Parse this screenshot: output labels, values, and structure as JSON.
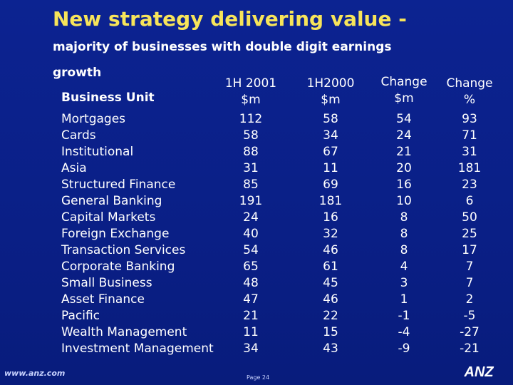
{
  "title": {
    "line1": "New strategy delivering value -",
    "line2": "majority of businesses with double digit earnings",
    "line3": "growth"
  },
  "table": {
    "headers": {
      "business_unit": "Business Unit",
      "h1_2001_a": "1H 2001",
      "h1_2001_b": "$m",
      "h1_2000_a": "1H2000",
      "h1_2000_b": "$m",
      "change_m_a": "Change",
      "change_m_b": "$m",
      "change_pct_a": "Change",
      "change_pct_b": "%"
    },
    "rows": [
      {
        "unit": "Mortgages",
        "h1_2001": "112",
        "h1_2000": "58",
        "change_m": "54",
        "change_pct": "93"
      },
      {
        "unit": "Cards",
        "h1_2001": "58",
        "h1_2000": "34",
        "change_m": "24",
        "change_pct": "71"
      },
      {
        "unit": "Institutional",
        "h1_2001": "88",
        "h1_2000": "67",
        "change_m": "21",
        "change_pct": "31"
      },
      {
        "unit": "Asia",
        "h1_2001": "31",
        "h1_2000": "11",
        "change_m": "20",
        "change_pct": "181"
      },
      {
        "unit": "Structured Finance",
        "h1_2001": "85",
        "h1_2000": "69",
        "change_m": "16",
        "change_pct": "23"
      },
      {
        "unit": "General Banking",
        "h1_2001": "191",
        "h1_2000": "181",
        "change_m": "10",
        "change_pct": "6"
      },
      {
        "unit": "Capital Markets",
        "h1_2001": "24",
        "h1_2000": "16",
        "change_m": "8",
        "change_pct": "50"
      },
      {
        "unit": "Foreign Exchange",
        "h1_2001": "40",
        "h1_2000": "32",
        "change_m": "8",
        "change_pct": "25"
      },
      {
        "unit": "Transaction Services",
        "h1_2001": "54",
        "h1_2000": "46",
        "change_m": "8",
        "change_pct": "17"
      },
      {
        "unit": "Corporate Banking",
        "h1_2001": "65",
        "h1_2000": "61",
        "change_m": "4",
        "change_pct": "7"
      },
      {
        "unit": "Small Business",
        "h1_2001": "48",
        "h1_2000": "45",
        "change_m": "3",
        "change_pct": "7"
      },
      {
        "unit": "Asset Finance",
        "h1_2001": "47",
        "h1_2000": "46",
        "change_m": "1",
        "change_pct": "2"
      },
      {
        "unit": "Pacific",
        "h1_2001": "21",
        "h1_2000": "22",
        "change_m": "-1",
        "change_pct": "-5"
      },
      {
        "unit": "Wealth Management",
        "h1_2001": "11",
        "h1_2000": "15",
        "change_m": "-4",
        "change_pct": "-27"
      },
      {
        "unit": "Investment Management",
        "h1_2001": "34",
        "h1_2000": "43",
        "change_m": "-9",
        "change_pct": "-21"
      }
    ]
  },
  "footer": {
    "url": "www.anz.com",
    "page": "Page 24",
    "logo_text": "ANZ"
  },
  "colors": {
    "background": "#0a1f86",
    "title_accent": "#f7e45a",
    "text": "#ffffff"
  }
}
